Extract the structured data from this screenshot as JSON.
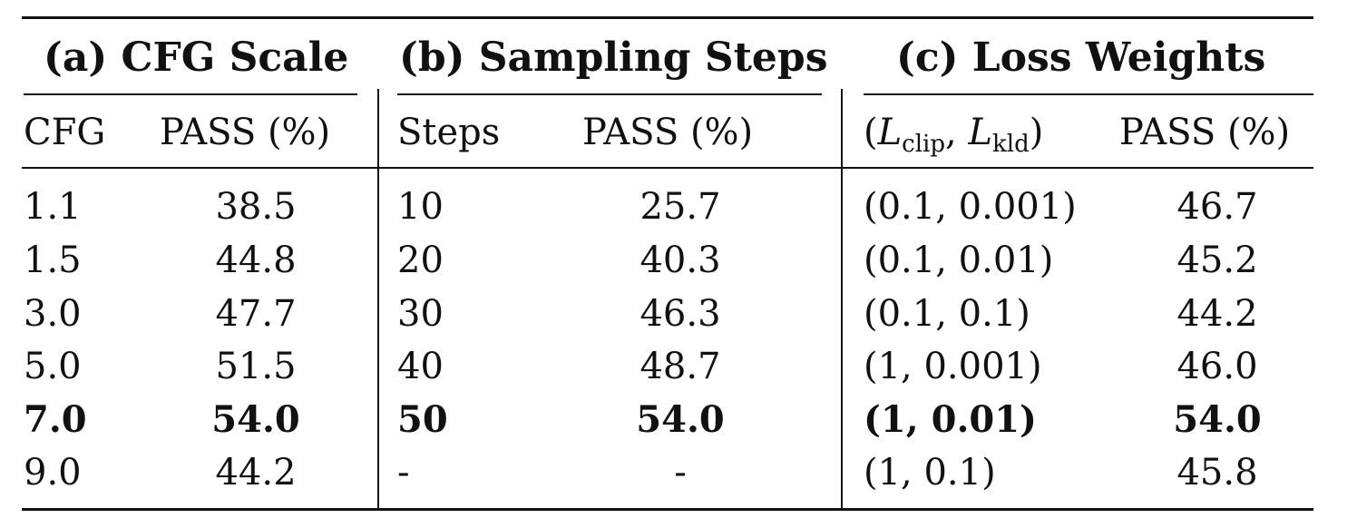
{
  "sections": [
    {
      "title": "(a) CFG Scale",
      "col1": "CFG",
      "col2": "PASS (%)",
      "rows": [
        {
          "a": "1.1",
          "b": "38.5",
          "bold": false
        },
        {
          "a": "1.5",
          "b": "44.8",
          "bold": false
        },
        {
          "a": "3.0",
          "b": "47.7",
          "bold": false
        },
        {
          "a": "5.0",
          "b": "51.5",
          "bold": false
        },
        {
          "a": "7.0",
          "b": "54.0",
          "bold": true
        },
        {
          "a": "9.0",
          "b": "44.2",
          "bold": false
        }
      ]
    },
    {
      "title": "(b) Sampling Steps",
      "col1": "Steps",
      "col2": "PASS (%)",
      "rows": [
        {
          "a": "10",
          "b": "25.7",
          "bold": false
        },
        {
          "a": "20",
          "b": "40.3",
          "bold": false
        },
        {
          "a": "30",
          "b": "46.3",
          "bold": false
        },
        {
          "a": "40",
          "b": "48.7",
          "bold": false
        },
        {
          "a": "50",
          "b": "54.0",
          "bold": true
        },
        {
          "a": "-",
          "b": "-",
          "bold": false
        }
      ]
    },
    {
      "title": "(c) Loss Weights",
      "col1_prefix": "(",
      "col1_sym1": "L",
      "col1_sub1": "clip",
      "col1_sep": ", ",
      "col1_sym2": "L",
      "col1_sub2": "kld",
      "col1_suffix": ")",
      "col2": "PASS (%)",
      "rows": [
        {
          "a": "(0.1, 0.001)",
          "b": "46.7",
          "bold": false
        },
        {
          "a": "(0.1, 0.01)",
          "b": "45.2",
          "bold": false
        },
        {
          "a": "(0.1, 0.1)",
          "b": "44.2",
          "bold": false
        },
        {
          "a": "(1, 0.001)",
          "b": "46.0",
          "bold": false
        },
        {
          "a": "(1, 0.01)",
          "b": "54.0",
          "bold": true
        },
        {
          "a": "(1, 0.1)",
          "b": "45.8",
          "bold": false
        }
      ]
    }
  ]
}
